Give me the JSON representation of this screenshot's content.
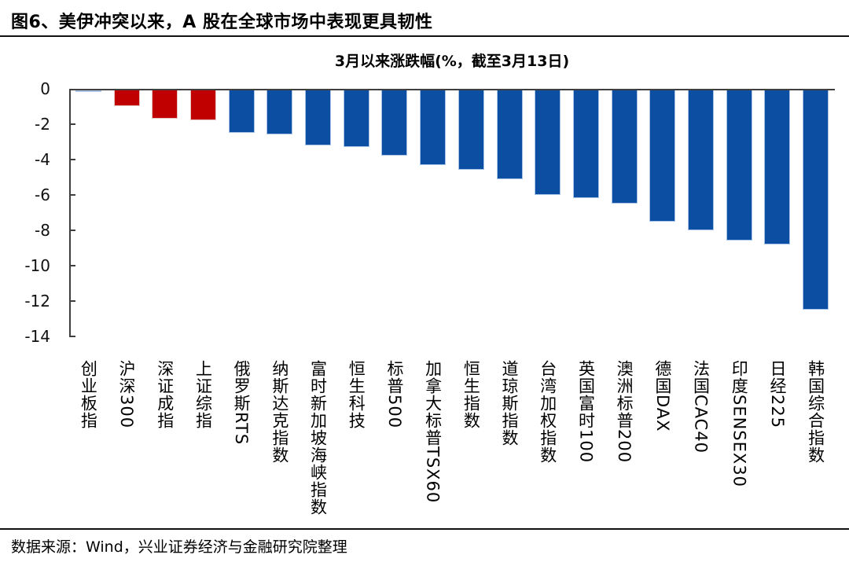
{
  "figure_title": "图6、美伊冲突以来，A 股在全球市场中表现更具韧性",
  "footer": {
    "source_text": "数据来源：Wind，兴业证券经济与金融研究院整理"
  },
  "colors": {
    "a_share_red": "#C00000",
    "global_blue": "#0B4EA2",
    "near_zero_light_blue": "#AEC6E8",
    "edge_red": "#E9C3C3",
    "edge_blue": "#A4C3E6",
    "axis_line": "#3f3f3f"
  },
  "chart_data": {
    "type": "bar",
    "title": "3月以来涨跌幅(%，截至3月13日)",
    "xlabel": "",
    "ylabel": "",
    "categories": [
      "创业板指",
      "沪深300",
      "深证成指",
      "上证综指",
      "俄罗斯RTS",
      "纳斯达克指数",
      "富时新加坡海峡指数",
      "恒生科技",
      "标普500",
      "加拿大标普TSX60",
      "恒生指数",
      "道琼斯指数",
      "台湾加权指数",
      "英国富时100",
      "澳洲标普200",
      "德国DAX",
      "法国CAC40",
      "印度SENSEX30",
      "日经225",
      "韩国综合指数"
    ],
    "values": [
      -0.1,
      -0.9,
      -1.6,
      -1.7,
      -2.4,
      -2.5,
      -3.1,
      -3.2,
      -3.7,
      -4.2,
      -4.5,
      -5.0,
      -5.9,
      -6.1,
      -6.4,
      -7.4,
      -7.9,
      -8.5,
      -8.7,
      -12.4
    ],
    "bar_color_keys": [
      "near_zero",
      "red",
      "red",
      "red",
      "blue",
      "blue",
      "blue",
      "blue",
      "blue",
      "blue",
      "blue",
      "blue",
      "blue",
      "blue",
      "blue",
      "blue",
      "blue",
      "blue",
      "blue",
      "blue"
    ],
    "ylim": [
      -14,
      0
    ],
    "yticks": [
      0,
      -2,
      -4,
      -6,
      -8,
      -10,
      -12,
      -14
    ],
    "grid": false,
    "legend": false
  }
}
